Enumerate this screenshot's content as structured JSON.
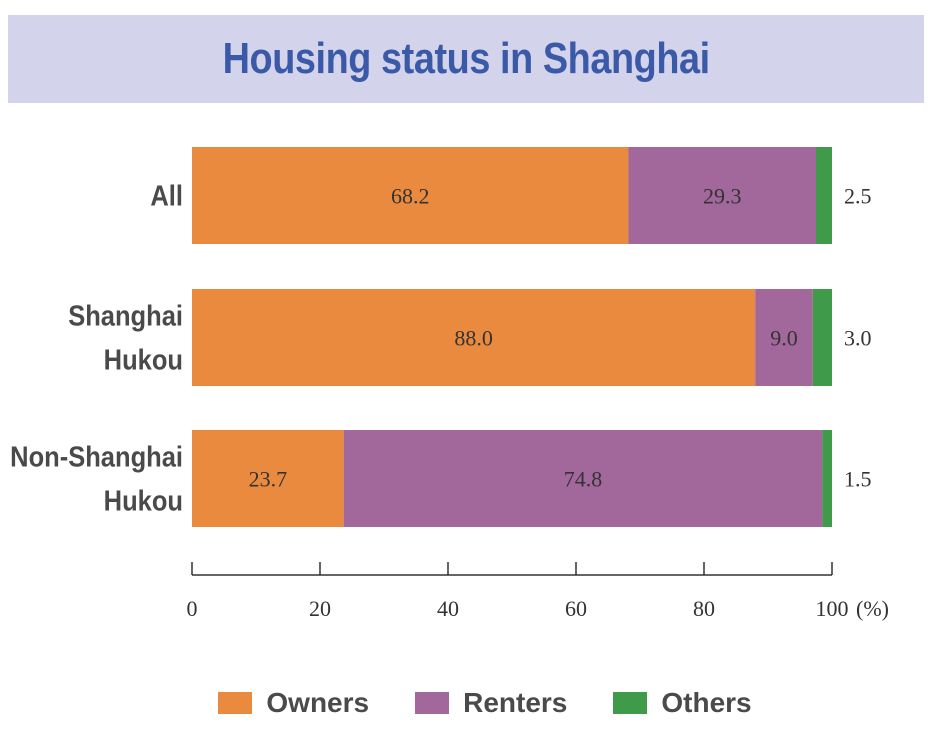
{
  "chart_data": {
    "type": "bar",
    "orientation": "horizontal",
    "stacked": true,
    "title": "Housing status in Shanghai",
    "categories": [
      "All",
      "Shanghai Hukou",
      "Non-Shanghai Hukou"
    ],
    "series": [
      {
        "name": "Owners",
        "color": "#ea8a3e",
        "values": [
          68.2,
          88.0,
          23.7
        ],
        "labels": [
          "68.2",
          "88.0",
          "23.7"
        ]
      },
      {
        "name": "Renters",
        "color": "#a2679b",
        "values": [
          29.3,
          9.0,
          74.8
        ],
        "labels": [
          "29.3",
          "9.0",
          "74.8"
        ]
      },
      {
        "name": "Others",
        "color": "#3f9a4a",
        "values": [
          2.5,
          3.0,
          1.5
        ],
        "labels": [
          "2.5",
          "3.0",
          "1.5"
        ]
      }
    ],
    "xlim": [
      0,
      100
    ],
    "xticks": [
      "0",
      "20",
      "40",
      "60",
      "80",
      "100"
    ],
    "xunit": "(%)",
    "legend_position": "bottom",
    "grid": false
  }
}
